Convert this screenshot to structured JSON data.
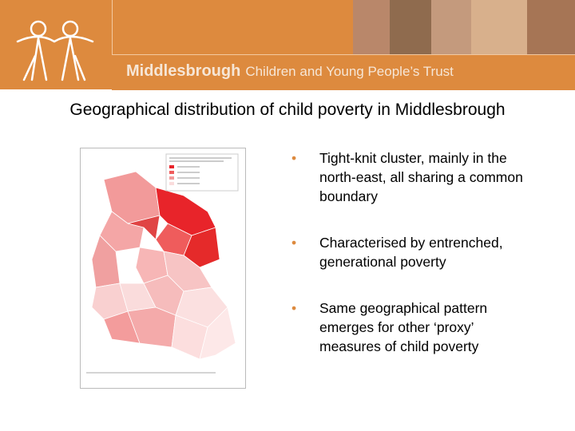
{
  "header": {
    "org_name": "Middlesbrough",
    "org_subtitle": "Children and Young People’s Trust"
  },
  "title": "Geographical distribution of child poverty in Middlesbrough",
  "bullets": [
    "Tight-knit cluster, mainly in the north-east, all sharing a common boundary",
    "Characterised by entrenched, generational poverty",
    "Same geographical pattern emerges for other ‘proxy’ measures of child poverty"
  ]
}
